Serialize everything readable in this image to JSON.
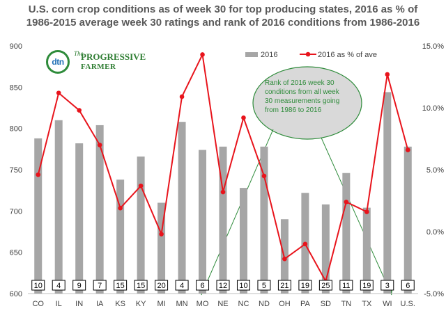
{
  "title_line1": "U.S. corn crop conditions as of week 30 for top producing states, 2016 as % of",
  "title_line2": "1986-2015 average week 30 ratings and rank of 2016 conditions from 1986-2016",
  "logo": {
    "mark": "dtn",
    "line1": "The",
    "line2": "PROGRESSIVE",
    "line3": "FARMER"
  },
  "callout": "Rank of 2016 week 30 conditions from all week 30 measurements going from 1986 to 2016",
  "colors": {
    "bar": "#a6a6a6",
    "line": "#e8141c",
    "callout_fill": "#d9d9d9",
    "callout_text": "#2e8b3a",
    "arrow": "#2e8b3a"
  },
  "chart_data": {
    "type": "bar+line",
    "categories": [
      "CO",
      "IL",
      "IN",
      "IA",
      "KS",
      "KY",
      "MI",
      "MN",
      "MO",
      "NE",
      "NC",
      "ND",
      "OH",
      "PA",
      "SD",
      "TN",
      "TX",
      "WI",
      "U.S."
    ],
    "series": [
      {
        "name": "2016",
        "type": "bar",
        "axis": "left",
        "values": [
          788,
          810,
          782,
          804,
          738,
          766,
          710,
          808,
          774,
          778,
          728,
          778,
          690,
          722,
          708,
          746,
          704,
          844,
          778
        ]
      },
      {
        "name": "2016 as % of ave",
        "type": "line",
        "axis": "right",
        "values": [
          4.6,
          11.2,
          9.8,
          7.0,
          1.9,
          3.7,
          -0.2,
          10.9,
          14.3,
          3.2,
          9.2,
          4.5,
          -2.2,
          -1.0,
          -4.0,
          2.4,
          1.6,
          12.7,
          6.6
        ]
      }
    ],
    "ranks": [
      "10",
      "4",
      "9",
      "7",
      "15",
      "15",
      "20",
      "4",
      "6",
      "12",
      "10",
      "5",
      "21",
      "19",
      "25",
      "11",
      "19",
      "3",
      "6"
    ],
    "yleft": {
      "min": 600,
      "max": 900,
      "ticks": [
        "600",
        "650",
        "700",
        "750",
        "800",
        "850",
        "900"
      ]
    },
    "yright": {
      "min": -5,
      "max": 15,
      "ticks": [
        "-5.0%",
        "0.0%",
        "5.0%",
        "10.0%",
        "15.0%"
      ]
    },
    "legend": {
      "position": "top-right",
      "items": [
        "2016",
        "2016 as % of ave"
      ]
    }
  }
}
